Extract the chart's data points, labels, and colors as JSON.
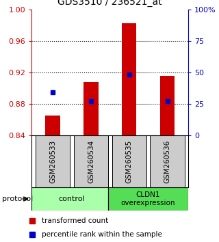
{
  "title": "GDS3510 / 236521_at",
  "samples": [
    "GSM260533",
    "GSM260534",
    "GSM260535",
    "GSM260536"
  ],
  "bar_values": [
    0.865,
    0.908,
    0.983,
    0.916
  ],
  "bar_base": 0.84,
  "percentile_values": [
    0.895,
    0.884,
    0.918,
    0.884
  ],
  "bar_color": "#cc0000",
  "dot_color": "#0000cc",
  "ylim_left": [
    0.84,
    1.0
  ],
  "ylim_right": [
    0,
    100
  ],
  "yticks_left": [
    0.84,
    0.88,
    0.92,
    0.96,
    1.0
  ],
  "yticks_right": [
    0,
    25,
    50,
    75,
    100
  ],
  "ytick_labels_right": [
    "0",
    "25",
    "50",
    "75",
    "100%"
  ],
  "groups": [
    {
      "label": "control",
      "color": "#aaffaa"
    },
    {
      "label": "CLDN1\noverexpression",
      "color": "#55dd55"
    }
  ],
  "protocol_label": "protocol",
  "legend_bar_label": "transformed count",
  "legend_dot_label": "percentile rank within the sample",
  "bg_sample_box": "#cccccc",
  "left_tick_color": "#cc0000",
  "right_tick_color": "#0000cc"
}
